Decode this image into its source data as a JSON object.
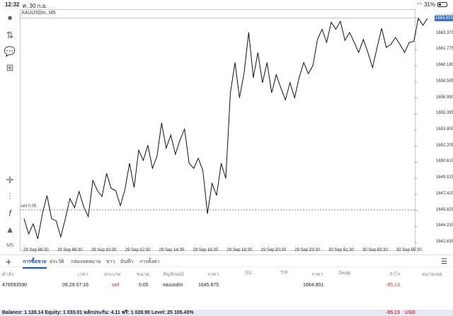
{
  "status_bar": {
    "time": "12:32",
    "date": "ศ. 30 ก.ย.",
    "battery": "31%",
    "battery_level": 0.31
  },
  "symbol_label": "XAUUSDm, M5",
  "price_axis": [
    "1664.965",
    "1663.370",
    "1661.775",
    "1660.180",
    "1658.585",
    "1656.990",
    "1655.395",
    "1653.800",
    "1652.205",
    "1650.610",
    "1649.015",
    "1647.420",
    "1645.825",
    "1644.230",
    "1642.635"
  ],
  "current_price": "1664.901",
  "time_axis": [
    "29 Sep 06:30",
    "29 Sep 08:30",
    "29 Sep 10:30",
    "29 Sep 12:30",
    "29 Sep 14:30",
    "29 Sep 16:30",
    "29 Sep 18:30",
    "29 Sep 20:30",
    "29 Sep 23:30",
    "30 Sep 01:30",
    "30 Sep 03:30",
    "30 Sep 05:30"
  ],
  "position_line_label": "sell 0.05",
  "tabs": [
    "การซื้อขาย",
    "ประวัติ",
    "กล่องจดหมาย",
    "ข่าว",
    "บันทึก",
    "การตั้งค่า"
  ],
  "table_headers": [
    "คำสั่ง",
    "เวลา",
    "ประเภท",
    "ขนาด",
    "สัญลักษณ์",
    "ราคา",
    "S/L",
    "T/P",
    "ราคา",
    "Swap",
    "กำไร",
    "หมายเหตุ"
  ],
  "order": {
    "ticket": "476593590",
    "time": "09.29 07:16",
    "type": "sell",
    "size": "0.05",
    "symbol": "xauusdm",
    "open_price": "1645.875",
    "current_price": "1664.901",
    "profit": "-95.13"
  },
  "balance_text": "Balance: 1 128.14 Equity: 1 033.01 หลักประกัน: 4.11 ฟรี: 1 028.90 Level: 25 105.43%",
  "total_profit": "-95.13",
  "currency": "USD",
  "colors": {
    "accent": "#1a55b8",
    "loss": "#d23a3a",
    "price_box": "#3b6fbf"
  },
  "toolbar_icons": [
    "account-icon",
    "trade-icon",
    "chat-icon",
    "new-document-icon",
    "crosshair-icon",
    "indicators-icon",
    "function-icon",
    "objects-icon",
    "timeframe-icon"
  ],
  "timeframe": "M5",
  "chart_data": {
    "type": "line",
    "symbol": "XAUUSDm",
    "timeframe": "M5",
    "ylim": [
      1641.8,
      1665.8
    ],
    "x_labels": [
      "29 Sep 06:30",
      "29 Sep 08:30",
      "29 Sep 10:30",
      "29 Sep 12:30",
      "29 Sep 14:30",
      "29 Sep 16:30",
      "29 Sep 18:30",
      "29 Sep 20:30",
      "29 Sep 23:30",
      "30 Sep 01:30",
      "30 Sep 03:30",
      "30 Sep 05:30"
    ],
    "values": [
      1645.0,
      1643.5,
      1644.5,
      1643.0,
      1645.5,
      1647.3,
      1645.0,
      1644.8,
      1643.2,
      1645.0,
      1647.0,
      1646.1,
      1647.7,
      1646.2,
      1645.2,
      1648.8,
      1647.8,
      1647.2,
      1649.5,
      1648.0,
      1647.8,
      1646.3,
      1647.9,
      1650.5,
      1648.1,
      1651.8,
      1650.8,
      1652.3,
      1650.0,
      1651.2,
      1654.5,
      1652.0,
      1653.3,
      1651.4,
      1652.8,
      1653.9,
      1650.5,
      1650.0,
      1651.0,
      1649.8,
      1645.5,
      1648.5,
      1647.3,
      1650.5,
      1649.0,
      1657.5,
      1660.5,
      1657.0,
      1659.5,
      1663.5,
      1659.0,
      1661.5,
      1658.5,
      1660.5,
      1657.5,
      1659.3,
      1658.0,
      1656.8,
      1658.5,
      1657.0,
      1659.0,
      1660.5,
      1659.4,
      1660.2,
      1662.8,
      1663.8,
      1662.5,
      1664.5,
      1663.8,
      1664.6,
      1662.7,
      1663.5,
      1662.5,
      1661.5,
      1662.8,
      1661.5,
      1660.0,
      1662.0,
      1663.9,
      1662.0,
      1662.3,
      1663.0,
      1662.3,
      1661.5,
      1662.5,
      1662.6,
      1664.9,
      1664.2,
      1664.9
    ],
    "position_level": 1645.875,
    "current_price": 1664.901
  }
}
